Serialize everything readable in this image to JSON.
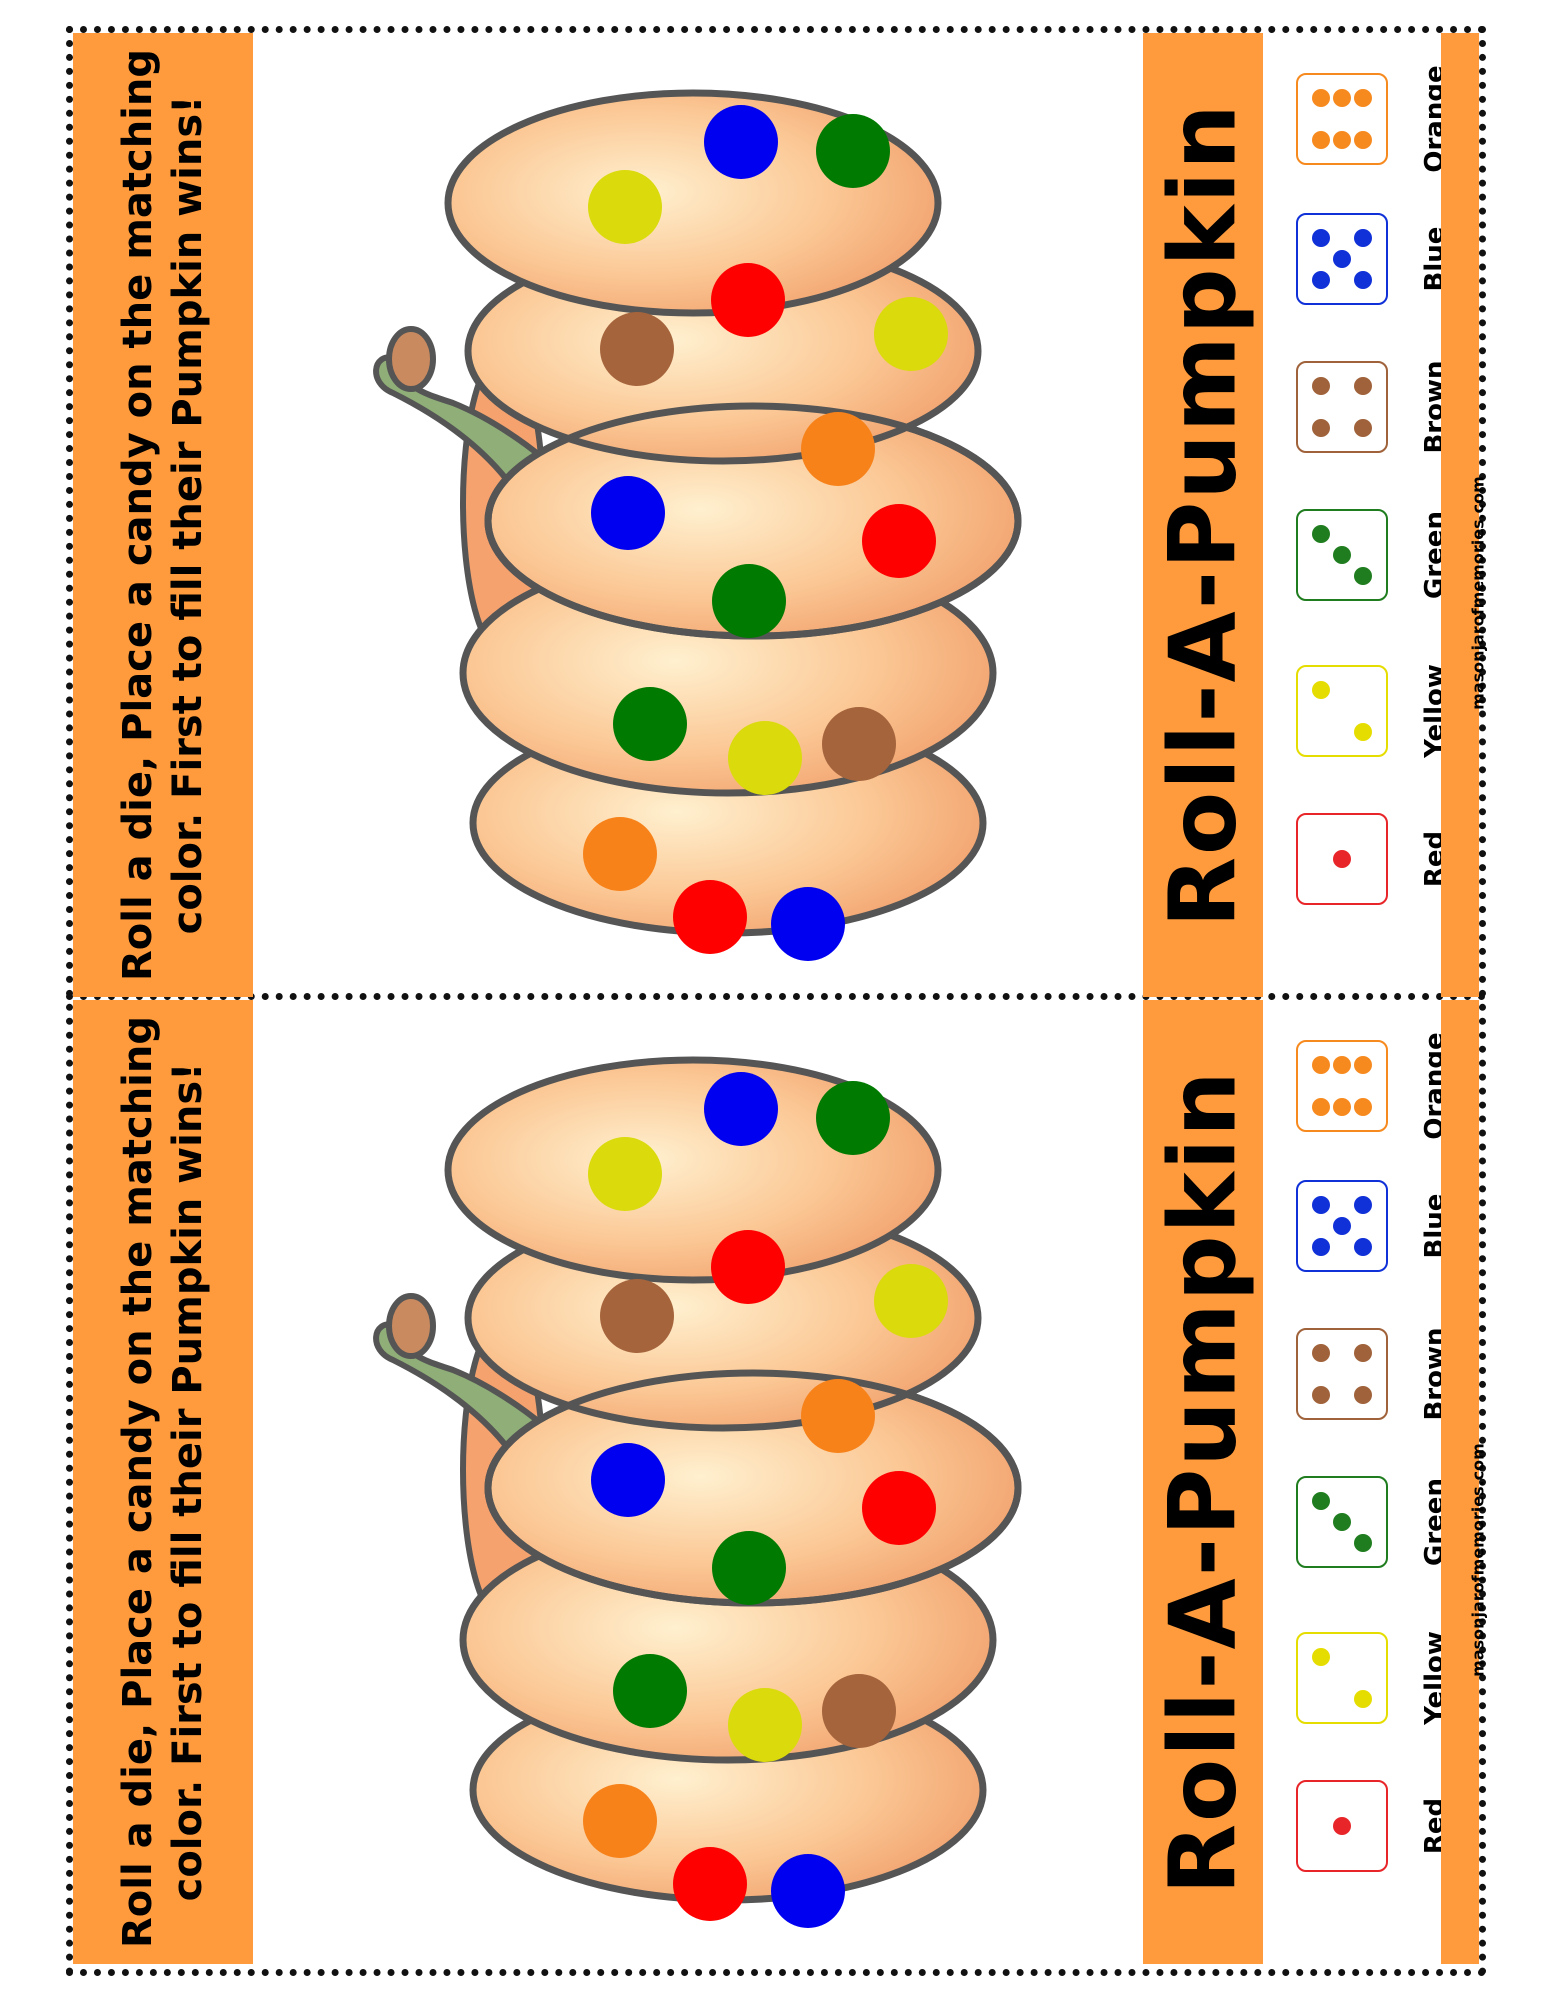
{
  "instructions": "Roll a die, Place a candy on the matching color. First to fill their Pumpkin wins!",
  "title": "Roll-A-Pumpkin",
  "website": "masonjarofmemories.com",
  "dice": [
    {
      "label": "Red",
      "pips": 1,
      "color": "#e8262a"
    },
    {
      "label": "Yellow",
      "pips": 2,
      "color": "#e6dd00"
    },
    {
      "label": "Green",
      "pips": 3,
      "color": "#1f7d1f"
    },
    {
      "label": "Brown",
      "pips": 4,
      "color": "#a0623a"
    },
    {
      "label": "Blue",
      "pips": 5,
      "color": "#1030d8"
    },
    {
      "label": "Orange",
      "pips": 6,
      "color": "#f78a1f"
    }
  ],
  "colors": {
    "orange": "#f7821a",
    "red": "#ff0000",
    "blue": "#0000f0",
    "green": "#007a00",
    "yellow": "#dada0c",
    "brown": "#a5643c"
  },
  "dots": [
    "orange",
    "red",
    "blue",
    "green",
    "yellow",
    "brown",
    "blue",
    "green",
    "orange",
    "red",
    "brown",
    "red",
    "yellow",
    "yellow",
    "blue",
    "green"
  ]
}
